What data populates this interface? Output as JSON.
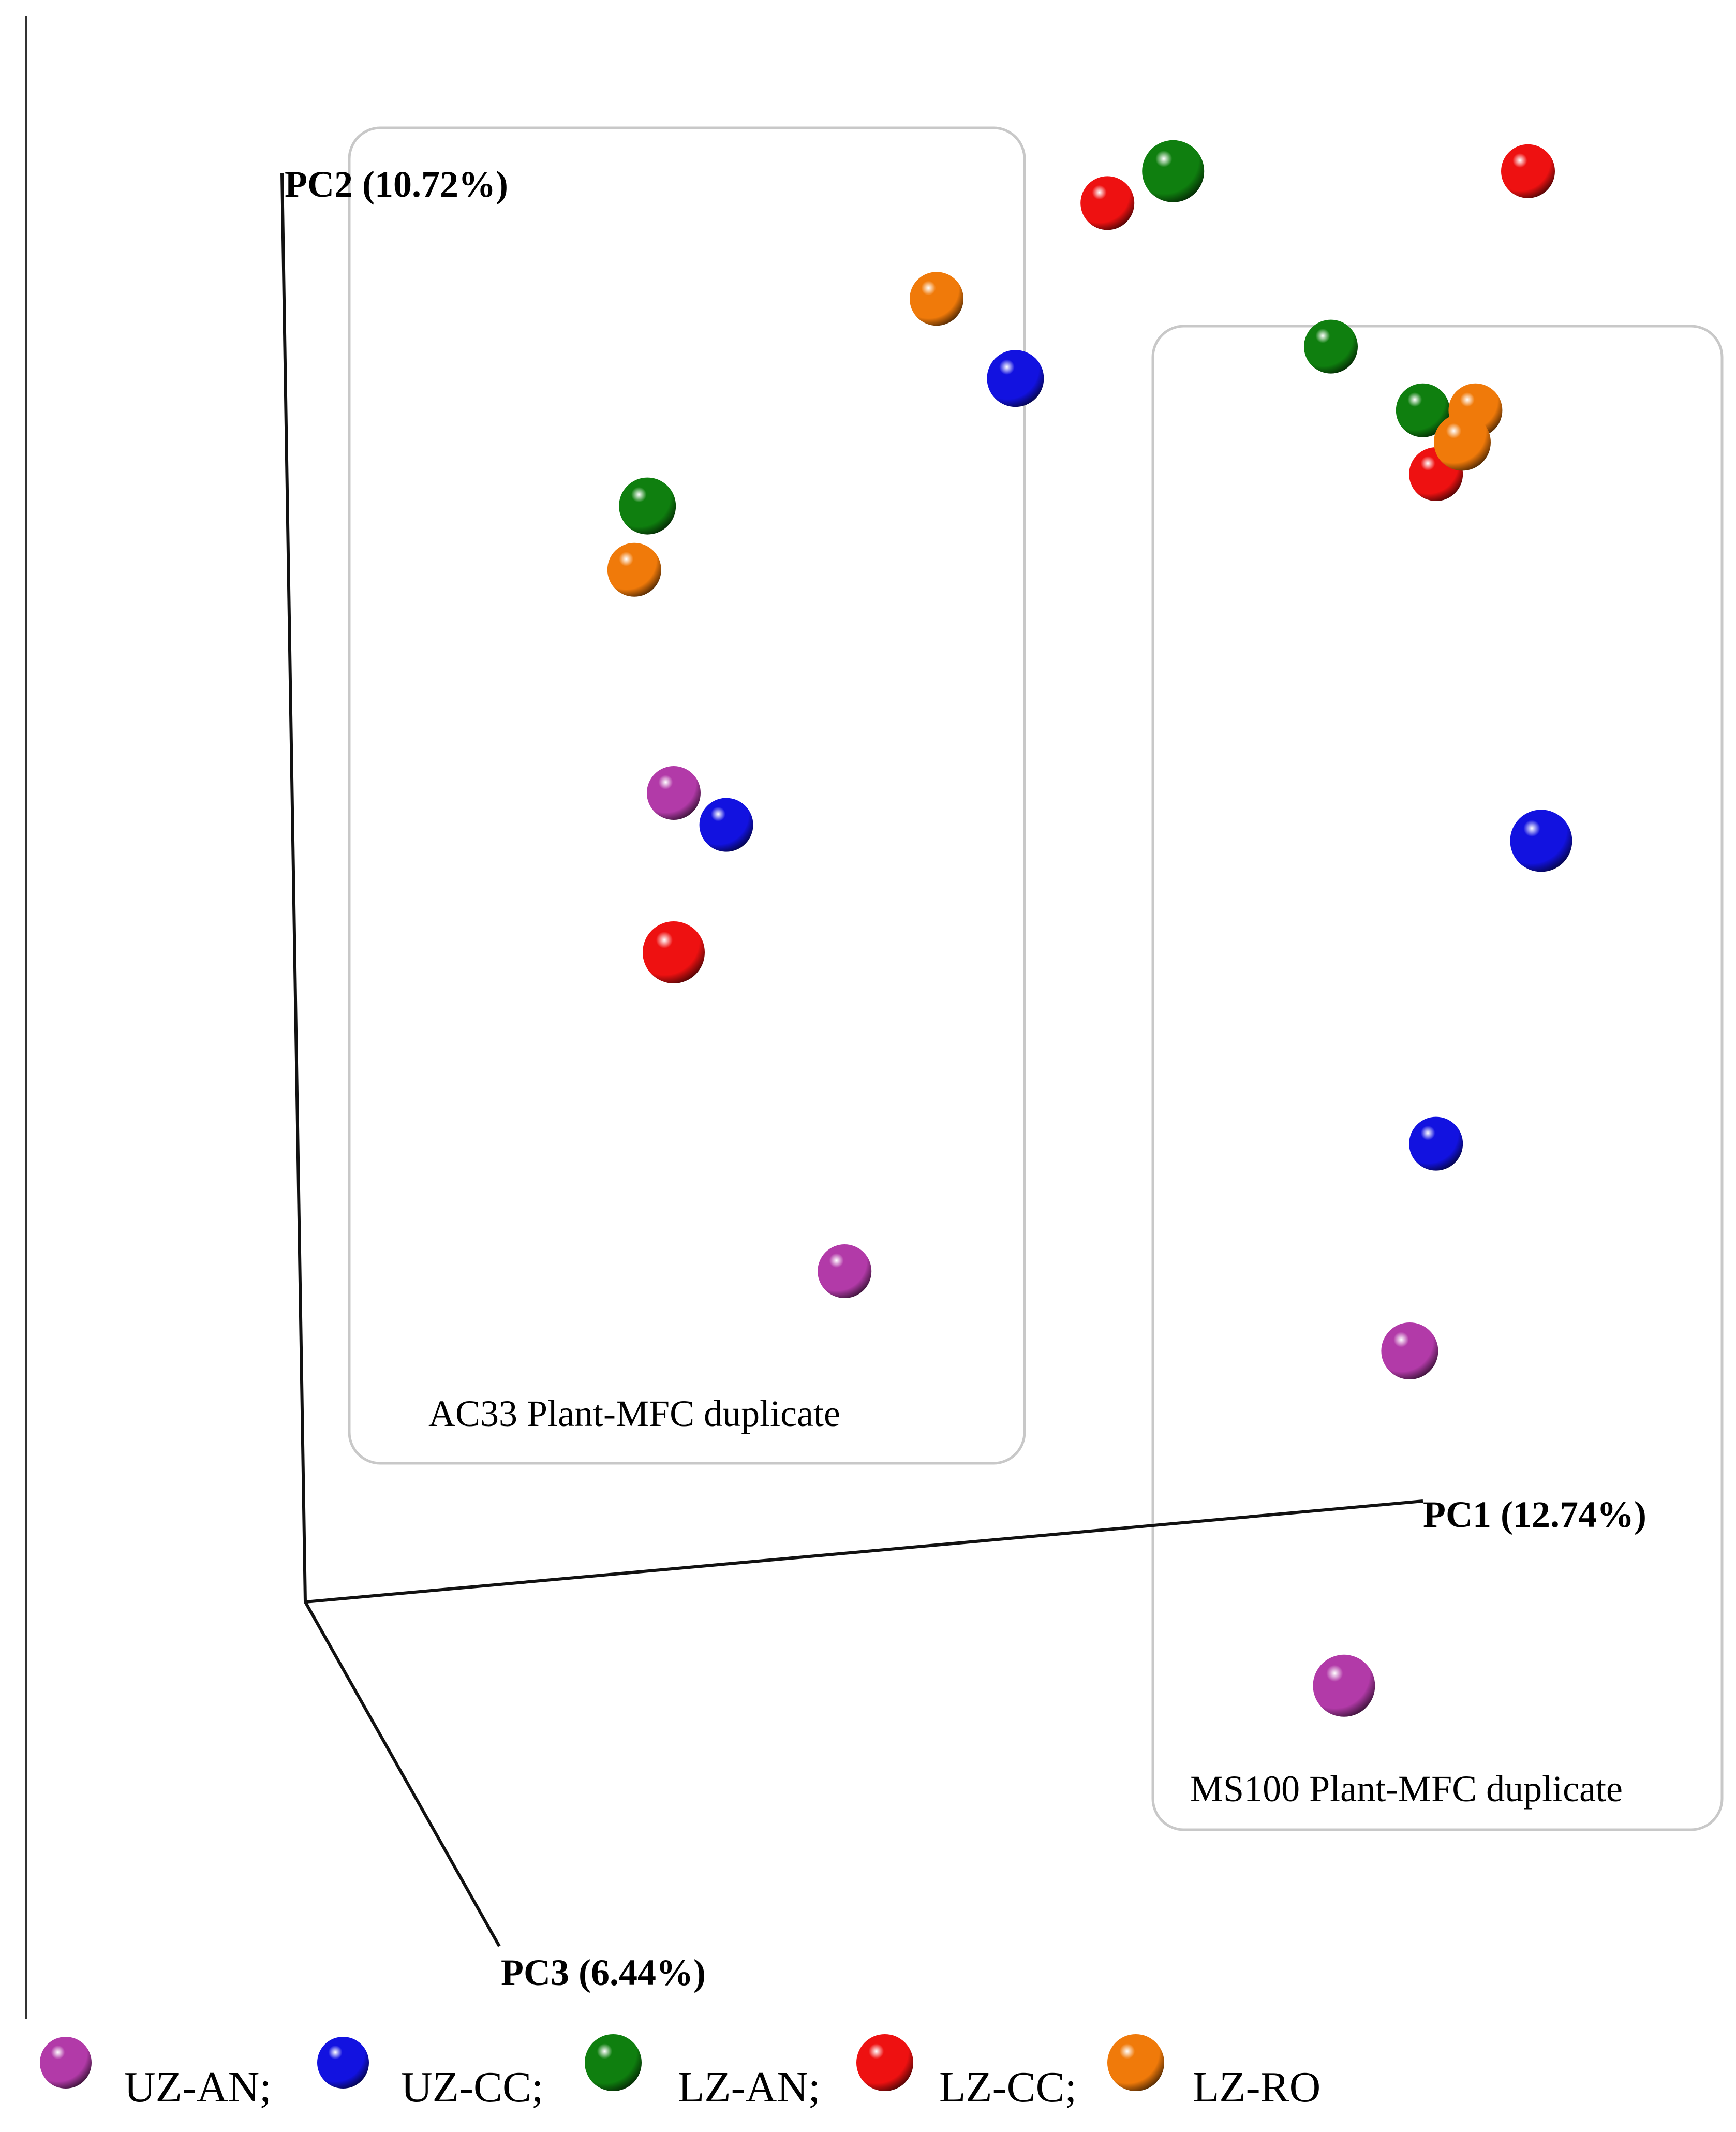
{
  "chart_data": {
    "type": "scatter",
    "projection": "3d",
    "axes": {
      "pc1": "PC1 (12.74%)",
      "pc2": "PC2 (10.72%)",
      "pc3": "PC3 (6.44%)"
    },
    "groups": [
      {
        "label": "AC33 Plant-MFC duplicate"
      },
      {
        "label": "MS100 Plant-MFC duplicate"
      }
    ],
    "legend": [
      {
        "name": "UZ-AN;",
        "color": "#b23aa8"
      },
      {
        "name": "UZ-CC;",
        "color": "#1212e0"
      },
      {
        "name": "LZ-AN;",
        "color": "#0f7f0f"
      },
      {
        "name": "LZ-CC;",
        "color": "#ee1111"
      },
      {
        "name": "LZ-RO",
        "color": "#f07a0a"
      }
    ],
    "legend_position": "bottom",
    "series": [
      {
        "name": "UZ-AN;",
        "color": "#b23aa8",
        "points": [
          {
            "group": "AC33 Plant-MFC duplicate",
            "x": 0.3,
            "y": 0.6
          },
          {
            "group": "AC33 Plant-MFC duplicate",
            "x": 0.43,
            "y": 0.3
          },
          {
            "group": "MS100 Plant-MFC duplicate",
            "x": 0.86,
            "y": 0.25
          },
          {
            "group": "MS100 Plant-MFC duplicate",
            "x": 0.81,
            "y": 0.04
          }
        ]
      },
      {
        "name": "UZ-CC;",
        "color": "#1212e0",
        "points": [
          {
            "group": "AC33 Plant-MFC duplicate",
            "x": 0.34,
            "y": 0.58
          },
          {
            "group": "AC33 Plant-MFC duplicate",
            "x": 0.56,
            "y": 0.86
          },
          {
            "group": "MS100 Plant-MFC duplicate",
            "x": 0.96,
            "y": 0.57
          },
          {
            "group": "MS100 Plant-MFC duplicate",
            "x": 0.88,
            "y": 0.38
          }
        ]
      },
      {
        "name": "LZ-AN;",
        "color": "#0f7f0f",
        "points": [
          {
            "group": "AC33 Plant-MFC duplicate",
            "x": 0.28,
            "y": 0.78
          },
          {
            "group": "AC33 Plant-MFC duplicate",
            "x": 0.68,
            "y": 0.99
          },
          {
            "group": "MS100 Plant-MFC duplicate",
            "x": 0.8,
            "y": 0.88
          },
          {
            "group": "MS100 Plant-MFC duplicate",
            "x": 0.87,
            "y": 0.84
          }
        ]
      },
      {
        "name": "LZ-CC;",
        "color": "#ee1111",
        "points": [
          {
            "group": "AC33 Plant-MFC duplicate",
            "x": 0.3,
            "y": 0.5
          },
          {
            "group": "AC33 Plant-MFC duplicate",
            "x": 0.63,
            "y": 0.97
          },
          {
            "group": "MS100 Plant-MFC duplicate",
            "x": 0.95,
            "y": 0.99
          },
          {
            "group": "MS100 Plant-MFC duplicate",
            "x": 0.88,
            "y": 0.8
          }
        ]
      },
      {
        "name": "LZ-RO",
        "color": "#f07a0a",
        "points": [
          {
            "group": "AC33 Plant-MFC duplicate",
            "x": 0.27,
            "y": 0.74
          },
          {
            "group": "AC33 Plant-MFC duplicate",
            "x": 0.5,
            "y": 0.91
          },
          {
            "group": "MS100 Plant-MFC duplicate",
            "x": 0.91,
            "y": 0.84
          },
          {
            "group": "MS100 Plant-MFC duplicate",
            "x": 0.9,
            "y": 0.82
          }
        ]
      }
    ]
  }
}
